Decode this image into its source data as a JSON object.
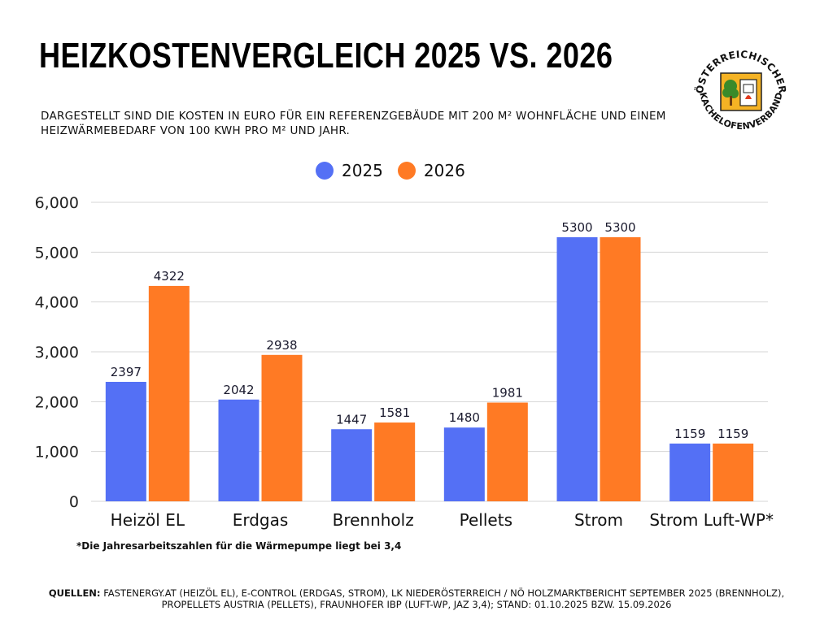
{
  "title": "HEIZKOSTENVERGLEICH 2025 VS. 2026",
  "subtitle": "Dargestellt sind die Kosten in Euro für ein Referenzgebäude mit 200 m² Wohnfläche und einem Heizwärmebedarf von 100 kWh pro m² und Jahr.",
  "logo": {
    "text_top": "ÖSTERREICHISCHER",
    "text_bottom": "KACHELOFENVERBAND"
  },
  "footnote": "*Die Jahresarbeitszahlen für die Wärmepumpe liegt bei 3,4",
  "sources": {
    "label": "QUELLEN:",
    "text": "FASTENERGY.AT (HEIZÖL EL), E-CONTROL (ERDGAS, STROM), LK NIEDERÖSTERREICH / NÖ HOLZMARKTBERICHT SEPTEMBER 2025 (BRENNHOLZ), PROPELLETS AUSTRIA (PELLETS), FRAUNHOFER IBP (LUFT-WP, JAZ 3,4); STAND: 01.10.2025 BZW. 15.09.2026"
  },
  "chart_data": {
    "type": "bar",
    "categories": [
      "Heizöl EL",
      "Erdgas",
      "Brennholz",
      "Pellets",
      "Strom",
      "Strom Luft-WP*"
    ],
    "series": [
      {
        "name": "2025",
        "color": "#5470f5",
        "values": [
          2397,
          2042,
          1447,
          1480,
          5300,
          1159
        ]
      },
      {
        "name": "2026",
        "color": "#ff7a24",
        "values": [
          4322,
          2938,
          1581,
          1981,
          5300,
          1159
        ]
      }
    ],
    "ylim": [
      0,
      6000
    ],
    "yticks": [
      0,
      1000,
      2000,
      3000,
      4000,
      5000,
      6000
    ],
    "ytick_labels": [
      "0",
      "1,000",
      "2,000",
      "3,000",
      "4,000",
      "5,000",
      "6,000"
    ],
    "grid": true,
    "legend": "top-center",
    "xlabel": "",
    "ylabel": ""
  }
}
